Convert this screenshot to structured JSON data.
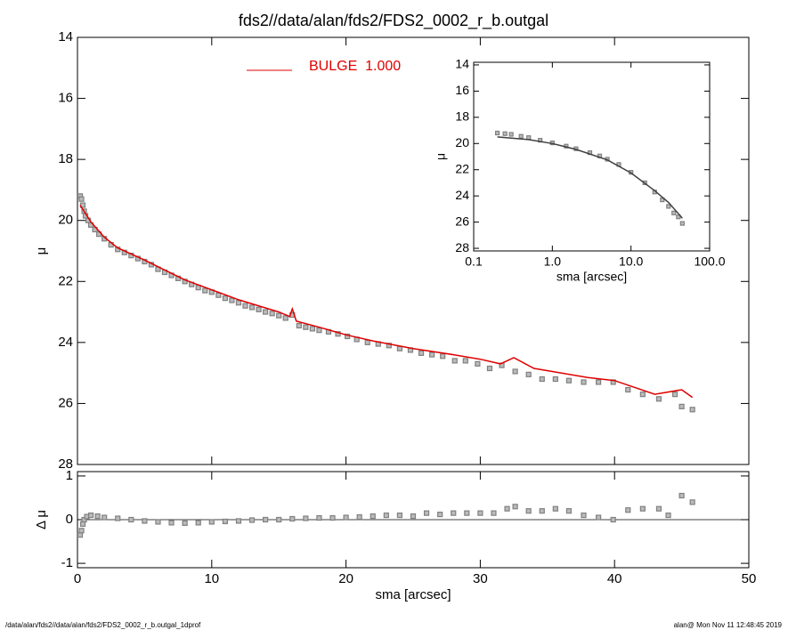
{
  "chart_data": [
    {
      "type": "scatter",
      "title": "fds2//data/alan/fds2/FDS2_0002_r_b.outgal",
      "ylabel": "μ",
      "xlim": [
        0,
        50
      ],
      "ylim": [
        28,
        14
      ],
      "yticks": [
        14,
        16,
        18,
        20,
        22,
        24,
        26,
        28
      ],
      "series": [
        {
          "style": "markers",
          "color": "#808080",
          "x": [
            0.2,
            0.3,
            0.4,
            0.5,
            0.6,
            0.8,
            1.0,
            1.3,
            1.6,
            2.0,
            2.5,
            3.0,
            3.5,
            4.0,
            4.5,
            5.0,
            5.5,
            6.0,
            6.5,
            7.0,
            7.5,
            8.0,
            8.5,
            9.0,
            9.5,
            10.0,
            10.5,
            11.0,
            11.5,
            12.0,
            12.5,
            13.0,
            13.5,
            14.0,
            14.5,
            15.0,
            15.5,
            16.0,
            16.5,
            17.0,
            17.5,
            18.0,
            18.7,
            19.4,
            20.1,
            20.8,
            21.6,
            22.4,
            23.2,
            24.0,
            24.8,
            25.6,
            26.4,
            27.2,
            28.1,
            28.9,
            29.8,
            30.7,
            31.6,
            32.6,
            33.6,
            34.6,
            35.6,
            36.6,
            37.7,
            38.8,
            39.9,
            41.0,
            42.1,
            43.3,
            44.5,
            45.0,
            45.8
          ],
          "values": [
            19.2,
            19.3,
            19.5,
            19.7,
            19.85,
            20.0,
            20.15,
            20.3,
            20.45,
            20.6,
            20.8,
            20.95,
            21.05,
            21.15,
            21.25,
            21.35,
            21.45,
            21.6,
            21.7,
            21.8,
            21.9,
            22.0,
            22.1,
            22.2,
            22.3,
            22.35,
            22.45,
            22.55,
            22.62,
            22.7,
            22.8,
            22.85,
            22.92,
            23.0,
            23.05,
            23.12,
            23.2,
            23.1,
            23.45,
            23.5,
            23.55,
            23.6,
            23.65,
            23.72,
            23.8,
            23.9,
            24.0,
            24.05,
            24.1,
            24.2,
            24.25,
            24.35,
            24.4,
            24.45,
            24.6,
            24.6,
            24.7,
            24.85,
            24.75,
            24.95,
            25.05,
            25.2,
            25.2,
            25.25,
            25.3,
            25.3,
            25.3,
            25.55,
            25.7,
            25.85,
            25.7,
            26.1,
            26.2
          ]
        },
        {
          "style": "line",
          "name": "BULGE  1.000",
          "color": "#e00000",
          "x": [
            0.2,
            1,
            2,
            3,
            5,
            8,
            12,
            15,
            15.8,
            16,
            16.3,
            18,
            20,
            22,
            25,
            28,
            30,
            31.5,
            32.5,
            34,
            36,
            38,
            40,
            43,
            45,
            45.8
          ],
          "values": [
            19.5,
            20.05,
            20.55,
            20.9,
            21.3,
            21.95,
            22.6,
            23.0,
            23.15,
            22.9,
            23.3,
            23.5,
            23.75,
            23.95,
            24.2,
            24.4,
            24.55,
            24.7,
            24.5,
            24.85,
            25.0,
            25.15,
            25.25,
            25.7,
            25.55,
            25.8
          ]
        }
      ]
    },
    {
      "type": "scatter",
      "ylabel": "Δ μ",
      "xlabel": "sma [arcsec]",
      "xlim": [
        0,
        50
      ],
      "xticks": [
        0,
        10,
        20,
        30,
        40,
        50
      ],
      "ylim": [
        -1.1,
        1.1
      ],
      "yticks": [
        1,
        0,
        -1
      ],
      "hline": 0,
      "series": [
        {
          "style": "markers",
          "color": "#808080",
          "x": [
            0.2,
            0.3,
            0.4,
            0.5,
            0.7,
            1.0,
            1.5,
            2.0,
            3.0,
            4.0,
            5.0,
            6.0,
            7.0,
            8.0,
            9.0,
            10.0,
            11.0,
            12.0,
            13.0,
            14.0,
            15.0,
            16.0,
            17.0,
            18.0,
            19.0,
            20.0,
            21.0,
            22.0,
            23.0,
            24.0,
            25.0,
            26.0,
            27.0,
            28.0,
            29.0,
            30.0,
            31.0,
            32.0,
            32.6,
            33.6,
            34.6,
            35.6,
            36.6,
            37.7,
            38.8,
            39.9,
            41.0,
            42.1,
            43.3,
            44.0,
            45.0,
            45.8
          ],
          "values": [
            -0.35,
            -0.25,
            -0.1,
            0.0,
            0.07,
            0.1,
            0.08,
            0.05,
            0.03,
            0.0,
            -0.03,
            -0.05,
            -0.07,
            -0.08,
            -0.07,
            -0.05,
            -0.04,
            -0.03,
            -0.01,
            0.0,
            0.0,
            0.02,
            0.03,
            0.04,
            0.04,
            0.05,
            0.06,
            0.08,
            0.1,
            0.1,
            0.08,
            0.15,
            0.12,
            0.15,
            0.15,
            0.15,
            0.15,
            0.25,
            0.3,
            0.2,
            0.2,
            0.25,
            0.2,
            0.1,
            0.05,
            0.0,
            0.22,
            0.25,
            0.25,
            0.1,
            0.55,
            0.4
          ]
        }
      ]
    },
    {
      "type": "scatter",
      "ylabel": "μ",
      "xlabel": "sma [arcsec]",
      "xlog": true,
      "xlim": [
        0.1,
        100
      ],
      "xticks": [
        0.1,
        {
          "value": 1,
          "label": "1.0"
        },
        {
          "value": 10,
          "label": "10.0"
        },
        {
          "value": 100,
          "label": "100.0"
        }
      ],
      "ylim": [
        28.2,
        13.8
      ],
      "yticks": [
        14,
        16,
        18,
        20,
        22,
        24,
        26,
        28
      ],
      "series": [
        {
          "style": "markers",
          "color": "#808080",
          "x": [
            0.2,
            0.25,
            0.3,
            0.4,
            0.5,
            0.7,
            1,
            1.5,
            2,
            3,
            4,
            5,
            7,
            10,
            15,
            20,
            25,
            30,
            35,
            40,
            45
          ],
          "values": [
            19.2,
            19.25,
            19.3,
            19.45,
            19.55,
            19.75,
            19.95,
            20.2,
            20.4,
            20.7,
            20.95,
            21.2,
            21.6,
            22.2,
            23.0,
            23.7,
            24.3,
            24.8,
            25.3,
            25.6,
            26.1
          ]
        },
        {
          "style": "line",
          "color": "#404040",
          "x": [
            0.2,
            0.5,
            1,
            2,
            5,
            10,
            20,
            30,
            45
          ],
          "values": [
            19.5,
            19.7,
            20.0,
            20.45,
            21.25,
            22.25,
            23.6,
            24.5,
            25.7
          ]
        }
      ]
    }
  ],
  "footer": {
    "left": "/data/alan/fds2//data/alan/fds2/FDS2_0002_r_b.outgal_1dprof",
    "right": "alan@  Mon Nov 11 12:48:45 2019"
  }
}
